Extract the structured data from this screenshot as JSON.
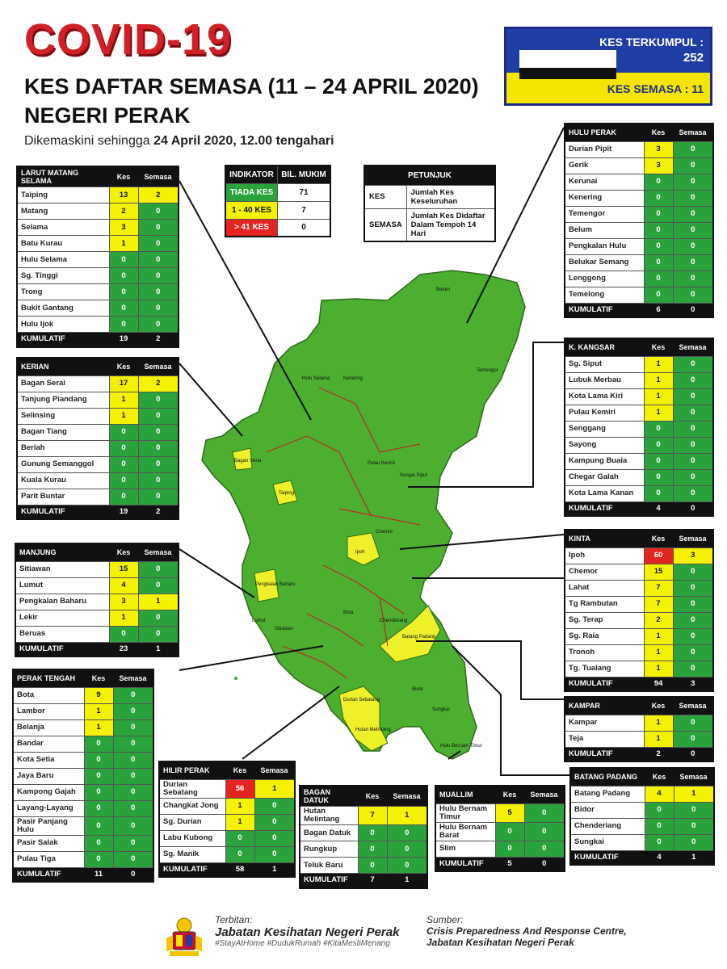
{
  "header": {
    "title": "COVID-19",
    "subtitle1": "KES DAFTAR SEMASA (11 – 24 APRIL 2020)",
    "subtitle2": "NEGERI PERAK",
    "updated_prefix": "Dikemaskini sehingga ",
    "updated_bold": "24 April 2020, 12.00 tengahari"
  },
  "summary": {
    "kes_terkumpul_label": "KES TERKUMPUL :",
    "kes_terkumpul": "252",
    "kes_semasa_label": "KES SEMASA : 11"
  },
  "indicator": {
    "headers": [
      "INDIKATOR",
      "BIL. MUKIM"
    ],
    "rows": [
      {
        "label": "TIADA KES",
        "value": "71",
        "color": "#2aa33c"
      },
      {
        "label": "1 - 40 KES",
        "value": "7",
        "color": "#f4f200"
      },
      {
        "label": "> 41 KES",
        "value": "0",
        "color": "#e32420"
      }
    ]
  },
  "legend": {
    "title": "PETUNJUK",
    "rows": [
      {
        "k": "KES",
        "v": "Jumlah Kes Keseluruhan"
      },
      {
        "k": "SEMASA",
        "v": "Jumlah Kes Didaftar Dalam Tempoh 14 Hari"
      }
    ]
  },
  "col_kes": "Kes",
  "col_semasa": "Semasa",
  "districts": [
    {
      "id": "larut",
      "name": "LARUT MATANG SELAMA",
      "rows": [
        [
          "Taiping",
          "13",
          "2"
        ],
        [
          "Matang",
          "2",
          "0"
        ],
        [
          "Selama",
          "3",
          "0"
        ],
        [
          "Batu Kurau",
          "1",
          "0"
        ],
        [
          "Hulu Selama",
          "0",
          "0"
        ],
        [
          "Sg. Tinggi",
          "0",
          "0"
        ],
        [
          "Trong",
          "0",
          "0"
        ],
        [
          "Bukit Gantang",
          "0",
          "0"
        ],
        [
          "Hulu Ijok",
          "0",
          "0"
        ]
      ],
      "total": [
        "KUMULATIF",
        "19",
        "2"
      ]
    },
    {
      "id": "kerian",
      "name": "KERIAN",
      "rows": [
        [
          "Bagan Serai",
          "17",
          "2"
        ],
        [
          "Tanjung Piandang",
          "1",
          "0"
        ],
        [
          "Selinsing",
          "1",
          "0"
        ],
        [
          "Bagan Tiang",
          "0",
          "0"
        ],
        [
          "Beriah",
          "0",
          "0"
        ],
        [
          "Gunung Semanggol",
          "0",
          "0"
        ],
        [
          "Kuala Kurau",
          "0",
          "0"
        ],
        [
          "Parit Buntar",
          "0",
          "0"
        ]
      ],
      "total": [
        "KUMULATIF",
        "19",
        "2"
      ]
    },
    {
      "id": "manjung",
      "name": "MANJUNG",
      "rows": [
        [
          "Sitiawan",
          "15",
          "0"
        ],
        [
          "Lumut",
          "4",
          "0"
        ],
        [
          "Pengkalan Baharu",
          "3",
          "1"
        ],
        [
          "Lekir",
          "1",
          "0"
        ],
        [
          "Beruas",
          "0",
          "0"
        ]
      ],
      "total": [
        "KUMULATIF",
        "23",
        "1"
      ]
    },
    {
      "id": "perak_tengah",
      "name": "PERAK TENGAH",
      "rows": [
        [
          "Bota",
          "9",
          "0"
        ],
        [
          "Lambor",
          "1",
          "0"
        ],
        [
          "Belanja",
          "1",
          "0"
        ],
        [
          "Bandar",
          "0",
          "0"
        ],
        [
          "Kota Setia",
          "0",
          "0"
        ],
        [
          "Jaya Baru",
          "0",
          "0"
        ],
        [
          "Kampong Gajah",
          "0",
          "0"
        ],
        [
          "Layang-Layang",
          "0",
          "0"
        ],
        [
          "Pasir Panjang Hulu",
          "0",
          "0"
        ],
        [
          "Pasir Salak",
          "0",
          "0"
        ],
        [
          "Pulau Tiga",
          "0",
          "0"
        ]
      ],
      "total": [
        "KUMULATIF",
        "11",
        "0"
      ]
    },
    {
      "id": "hilir_perak",
      "name": "HILIR PERAK",
      "rows": [
        [
          "Durian Sebatang",
          "56",
          "1"
        ],
        [
          "Changkat Jong",
          "1",
          "0"
        ],
        [
          "Sg. Durian",
          "1",
          "0"
        ],
        [
          "Labu Kubong",
          "0",
          "0"
        ],
        [
          "Sg. Manik",
          "0",
          "0"
        ]
      ],
      "total": [
        "KUMULATIF",
        "58",
        "1"
      ]
    },
    {
      "id": "bagan_datuk",
      "name": "BAGAN DATUK",
      "rows": [
        [
          "Hutan Melintang",
          "7",
          "1"
        ],
        [
          "Bagan Datuk",
          "0",
          "0"
        ],
        [
          "Rungkup",
          "0",
          "0"
        ],
        [
          "Teluk Baru",
          "0",
          "0"
        ]
      ],
      "total": [
        "KUMULATIF",
        "7",
        "1"
      ]
    },
    {
      "id": "muallim",
      "name": "MUALLIM",
      "rows": [
        [
          "Hulu Bernam Timur",
          "5",
          "0"
        ],
        [
          "Hulu Bernam Barat",
          "0",
          "0"
        ],
        [
          "Slim",
          "0",
          "0"
        ]
      ],
      "total": [
        "KUMULATIF",
        "5",
        "0"
      ]
    },
    {
      "id": "hulu_perak",
      "name": "HULU PERAK",
      "rows": [
        [
          "Durian Pipit",
          "3",
          "0"
        ],
        [
          "Gerik",
          "3",
          "0"
        ],
        [
          "Kerunai",
          "0",
          "0"
        ],
        [
          "Kenering",
          "0",
          "0"
        ],
        [
          "Temengor",
          "0",
          "0"
        ],
        [
          "Belum",
          "0",
          "0"
        ],
        [
          "Pengkalan Hulu",
          "0",
          "0"
        ],
        [
          "Belukar Semang",
          "0",
          "0"
        ],
        [
          "Lenggong",
          "0",
          "0"
        ],
        [
          "Temelong",
          "0",
          "0"
        ]
      ],
      "total": [
        "KUMULATIF",
        "6",
        "0"
      ]
    },
    {
      "id": "kkangsar",
      "name": "K. KANGSAR",
      "rows": [
        [
          "Sg. Siput",
          "1",
          "0"
        ],
        [
          "Lubuk Merbau",
          "1",
          "0"
        ],
        [
          "Kota Lama Kiri",
          "1",
          "0"
        ],
        [
          "Pulau Kemiri",
          "1",
          "0"
        ],
        [
          "Senggang",
          "0",
          "0"
        ],
        [
          "Sayong",
          "0",
          "0"
        ],
        [
          "Kampung Buaia",
          "0",
          "0"
        ],
        [
          "Chegar Galah",
          "0",
          "0"
        ],
        [
          "Kota Lama Kanan",
          "0",
          "0"
        ]
      ],
      "total": [
        "KUMULATIF",
        "4",
        "0"
      ]
    },
    {
      "id": "kinta",
      "name": "KINTA",
      "rows": [
        [
          "Ipoh",
          "60",
          "3"
        ],
        [
          "Chemor",
          "15",
          "0"
        ],
        [
          "Lahat",
          "7",
          "0"
        ],
        [
          "Tg Rambutan",
          "7",
          "0"
        ],
        [
          "Sg. Terap",
          "2",
          "0"
        ],
        [
          "Sg. Raia",
          "1",
          "0"
        ],
        [
          "Tronoh",
          "1",
          "0"
        ],
        [
          "Tg. Tualang",
          "1",
          "0"
        ]
      ],
      "total": [
        "KUMULATIF",
        "94",
        "3"
      ]
    },
    {
      "id": "kampar",
      "name": "KAMPAR",
      "rows": [
        [
          "Kampar",
          "1",
          "0"
        ],
        [
          "Teja",
          "1",
          "0"
        ]
      ],
      "total": [
        "KUMULATIF",
        "2",
        "0"
      ]
    },
    {
      "id": "batang_padang",
      "name": "BATANG PADANG",
      "rows": [
        [
          "Batang Padang",
          "4",
          "1"
        ],
        [
          "Bidor",
          "0",
          "0"
        ],
        [
          "Chenderiang",
          "0",
          "0"
        ],
        [
          "Sungkai",
          "0",
          "0"
        ]
      ],
      "total": [
        "KUMULATIF",
        "4",
        "1"
      ]
    }
  ],
  "map_labels": [
    "Taiping",
    "Ipoh",
    "Bagan Serai",
    "Pengkalan Baharu",
    "Batang Padang",
    "Durian Sebatang",
    "Hutan Melintang",
    "Belum",
    "Temengor",
    "Kenering",
    "Hulu Selama",
    "Pulau Kemiri",
    "Sungai Siput",
    "Chemor",
    "Sitiawan",
    "Lumut",
    "Bota",
    "Chenderiang",
    "Bidor",
    "Sungkai",
    "Hulu Bernam Timur"
  ],
  "footer": {
    "terbitan": "Terbitan:",
    "org": "Jabatan Kesihatan Negeri Perak",
    "tags": "#StayAtHome #DudukRumah #KitaMestiMenang",
    "sumber": "Sumber:",
    "src1": "Crisis Preparedness And Response Centre,",
    "src2": "Jabatan Kesihatan Negeri Perak"
  }
}
